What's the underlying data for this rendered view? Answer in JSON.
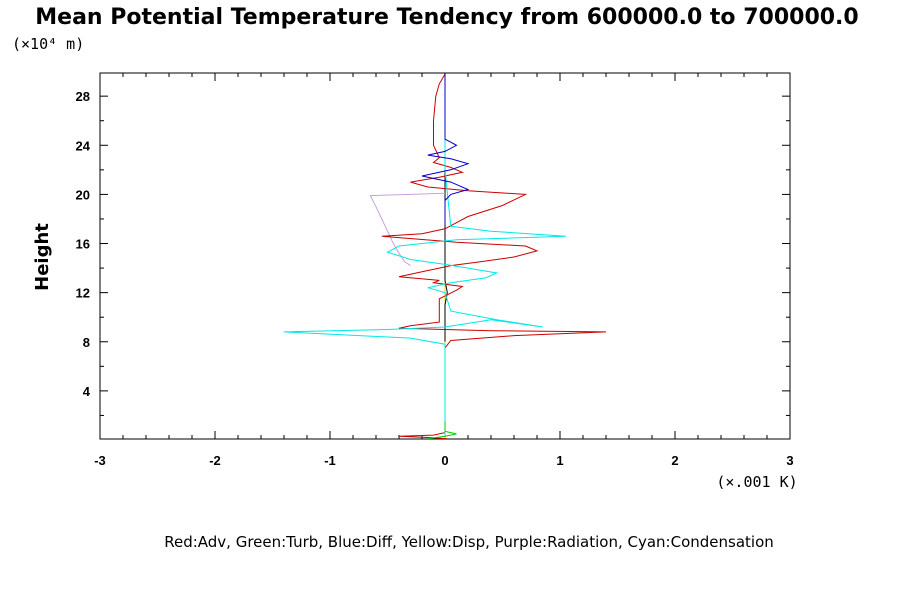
{
  "chart_data": {
    "type": "line",
    "title": "Mean Potential Temperature Tendency from 600000.0 to 700000.0",
    "ylabel": "Height",
    "y_units": "(×10⁴ m)",
    "x_units": "(×.001 K)",
    "xlim": [
      -3,
      3
    ],
    "ylim": [
      0,
      29.8
    ],
    "x_ticks": [
      "-3",
      "-2",
      "-1",
      "0",
      "1",
      "2",
      "3"
    ],
    "y_ticks": [
      "4",
      "8",
      "12",
      "16",
      "20",
      "24",
      "28"
    ],
    "legend_text": "Red:Adv, Green:Turb, Blue:Diff, Yellow:Disp, Purple:Radiation, Cyan:Condensation",
    "colors": {
      "Adv": "#cc0000",
      "Turb": "#00cc00",
      "Diff": "#0000cc",
      "Disp": "#e0e000",
      "Radiation": "#c8a0e0",
      "Condensation": "#00e8e8",
      "Total": "#000000"
    },
    "series": [
      {
        "name": "Adv",
        "points": [
          [
            0.02,
            0.1
          ],
          [
            -0.15,
            0.2
          ],
          [
            -0.4,
            0.3
          ],
          [
            -0.1,
            0.4
          ],
          [
            0.0,
            0.6
          ],
          [
            0.0,
            7.5
          ],
          [
            0.05,
            8.1
          ],
          [
            0.6,
            8.5
          ],
          [
            1.4,
            8.8
          ],
          [
            0.4,
            8.9
          ],
          [
            -0.4,
            9.1
          ],
          [
            -0.3,
            9.3
          ],
          [
            -0.05,
            9.6
          ],
          [
            -0.05,
            11.5
          ],
          [
            0.1,
            12.2
          ],
          [
            0.15,
            12.5
          ],
          [
            -0.1,
            12.8
          ],
          [
            -0.05,
            13.0
          ],
          [
            -0.4,
            13.3
          ],
          [
            -0.2,
            13.7
          ],
          [
            -0.05,
            14.0
          ],
          [
            0.05,
            14.2
          ],
          [
            0.3,
            14.5
          ],
          [
            0.6,
            14.9
          ],
          [
            0.8,
            15.4
          ],
          [
            0.7,
            15.8
          ],
          [
            0.1,
            16.1
          ],
          [
            -0.55,
            16.6
          ],
          [
            -0.2,
            16.8
          ],
          [
            0.0,
            17.2
          ],
          [
            0.2,
            18.2
          ],
          [
            0.5,
            19.1
          ],
          [
            0.7,
            20.0
          ],
          [
            0.2,
            20.3
          ],
          [
            -0.15,
            20.6
          ],
          [
            -0.3,
            21.0
          ],
          [
            -0.05,
            21.4
          ],
          [
            0.15,
            21.8
          ],
          [
            0.05,
            22.2
          ],
          [
            -0.1,
            22.6
          ],
          [
            -0.05,
            23.0
          ],
          [
            -0.1,
            24.0
          ],
          [
            -0.1,
            26.0
          ],
          [
            -0.08,
            28.0
          ],
          [
            -0.05,
            29.0
          ],
          [
            0.0,
            29.8
          ]
        ]
      },
      {
        "name": "Condensation",
        "points": [
          [
            0.0,
            0.2
          ],
          [
            0.0,
            7.8
          ],
          [
            -0.3,
            8.3
          ],
          [
            -1.4,
            8.8
          ],
          [
            -0.5,
            9.0
          ],
          [
            0.0,
            9.2
          ],
          [
            0.4,
            9.8
          ],
          [
            0.85,
            9.2
          ],
          [
            0.45,
            9.8
          ],
          [
            0.05,
            10.5
          ],
          [
            0.0,
            12.0
          ],
          [
            -0.15,
            12.4
          ],
          [
            0.05,
            12.8
          ],
          [
            0.35,
            13.2
          ],
          [
            0.45,
            13.6
          ],
          [
            0.2,
            14.0
          ],
          [
            0.0,
            14.3
          ],
          [
            -0.3,
            14.7
          ],
          [
            -0.5,
            15.3
          ],
          [
            -0.4,
            15.8
          ],
          [
            0.1,
            16.3
          ],
          [
            1.05,
            16.6
          ],
          [
            0.4,
            17.0
          ],
          [
            0.05,
            17.4
          ],
          [
            0.0,
            22.0
          ],
          [
            0.0,
            29.8
          ]
        ]
      },
      {
        "name": "Diff",
        "points": [
          [
            0.0,
            17.5
          ],
          [
            0.0,
            19.5
          ],
          [
            0.05,
            20.0
          ],
          [
            0.2,
            20.4
          ],
          [
            0.05,
            21.0
          ],
          [
            -0.2,
            21.5
          ],
          [
            0.05,
            22.0
          ],
          [
            0.2,
            22.5
          ],
          [
            0.05,
            22.9
          ],
          [
            -0.15,
            23.2
          ],
          [
            0.0,
            23.5
          ],
          [
            0.1,
            24.0
          ],
          [
            0.0,
            24.5
          ],
          [
            0.0,
            29.8
          ]
        ]
      },
      {
        "name": "Radiation",
        "points": [
          [
            -0.3,
            14.2
          ],
          [
            -0.35,
            14.5
          ],
          [
            -0.4,
            15.2
          ],
          [
            -0.45,
            16.0
          ],
          [
            -0.5,
            17.0
          ],
          [
            -0.55,
            18.0
          ],
          [
            -0.6,
            19.0
          ],
          [
            -0.65,
            19.9
          ],
          [
            -0.3,
            20.0
          ],
          [
            0.0,
            20.1
          ]
        ]
      },
      {
        "name": "Turb",
        "points": [
          [
            -0.15,
            0.1
          ],
          [
            0.0,
            0.3
          ],
          [
            0.1,
            0.5
          ],
          [
            0.0,
            0.7
          ],
          [
            0.0,
            1.5
          ]
        ]
      },
      {
        "name": "Disp",
        "points": [
          [
            0.0,
            0.0
          ],
          [
            0.0,
            29.8
          ]
        ]
      },
      {
        "name": "Total",
        "points": [
          [
            0.0,
            8.0
          ],
          [
            0.0,
            11.0
          ],
          [
            0.02,
            12.0
          ],
          [
            0.0,
            13.0
          ],
          [
            0.0,
            29.8
          ]
        ]
      }
    ]
  }
}
